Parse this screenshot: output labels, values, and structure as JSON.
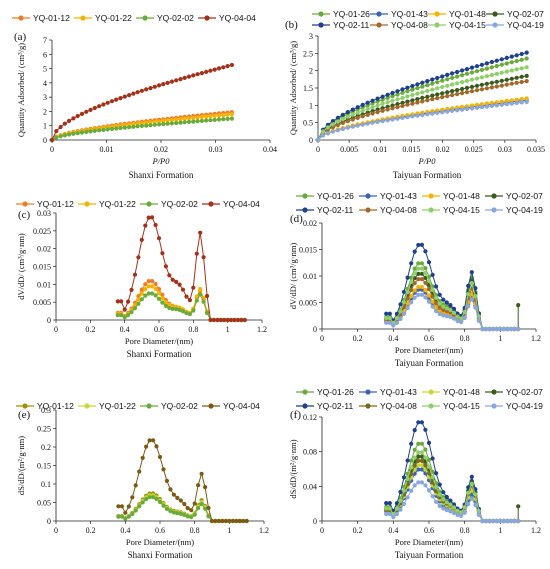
{
  "chart_data": [
    {
      "panel": "(a)",
      "type": "line",
      "formation": "Shanxi Formation",
      "xlabel": "P/P0",
      "ylabel": "Quantity Adsorbed/ (cm³/g)",
      "xlim": [
        0,
        0.04
      ],
      "ylim": [
        0,
        7
      ],
      "xticks": [
        0,
        0.01,
        0.02,
        0.03,
        0.04
      ],
      "xtick_labels": [
        "0",
        "0.01",
        "0.02",
        "0.03",
        "0.04"
      ],
      "yticks": [
        0,
        1,
        2,
        3,
        4,
        5,
        6,
        7
      ],
      "ytick_labels": [
        "0",
        "1",
        "2",
        "3",
        "4",
        "5",
        "6",
        "7"
      ],
      "legend_cols": 4,
      "series": [
        {
          "name": "YQ-01-12",
          "color": "#f07c2b",
          "marker": "circle",
          "final": 1.95
        },
        {
          "name": "YQ-01-22",
          "color": "#f4b400",
          "marker": "circle",
          "final": 1.8
        },
        {
          "name": "YQ-02-02",
          "color": "#6aaa3a",
          "marker": "circle",
          "final": 1.5
        },
        {
          "name": "YQ-04-04",
          "color": "#a2321c",
          "marker": "circle",
          "final": 5.25
        }
      ]
    },
    {
      "panel": "(b)",
      "type": "line",
      "formation": "Taiyuan Formation",
      "xlabel": "P/P0",
      "ylabel": "Quantity Adsorbed/ (cm³/g)",
      "xlim": [
        0,
        0.035
      ],
      "ylim": [
        0,
        3
      ],
      "xticks": [
        0,
        0.005,
        0.01,
        0.015,
        0.02,
        0.025,
        0.03,
        0.035
      ],
      "xtick_labels": [
        "0",
        "0.005",
        "0.01",
        "0.015",
        "0.02",
        "0.025",
        "0.03",
        "0.035"
      ],
      "yticks": [
        0,
        0.5,
        1,
        1.5,
        2,
        2.5,
        3
      ],
      "ytick_labels": [
        "0",
        "0.5",
        "1",
        "1.5",
        "2",
        "2.5",
        "3"
      ],
      "legend_cols": 4,
      "series": [
        {
          "name": "YQ-01-26",
          "color": "#6aaa3a",
          "marker": "circle",
          "final": 2.35
        },
        {
          "name": "YQ-01-43",
          "color": "#3a63b8",
          "marker": "circle",
          "final": 1.15
        },
        {
          "name": "YQ-01-48",
          "color": "#f4b400",
          "marker": "circle",
          "final": 1.2
        },
        {
          "name": "YQ-02-07",
          "color": "#3b5a1e",
          "marker": "circle",
          "final": 1.85
        },
        {
          "name": "YQ-02-11",
          "color": "#1f3f8c",
          "marker": "circle",
          "final": 2.52
        },
        {
          "name": "YQ-04-08",
          "color": "#a0692b",
          "marker": "circle",
          "final": 1.7
        },
        {
          "name": "YQ-04-15",
          "color": "#8fcf6a",
          "marker": "circle",
          "final": 2.1
        },
        {
          "name": "YQ-04-19",
          "color": "#8aa6dc",
          "marker": "circle",
          "final": 1.1
        }
      ]
    },
    {
      "panel": "(c)",
      "type": "line",
      "formation": "Shanxi Formation",
      "xlabel": "Pore Diameter/(nm)",
      "ylabel": "dV/dD/ (cm³/g·nm)",
      "xlim": [
        0,
        1.2
      ],
      "ylim": [
        0,
        0.03
      ],
      "xticks": [
        0,
        0.2,
        0.4,
        0.6,
        0.8,
        1,
        1.2
      ],
      "xtick_labels": [
        "0",
        "0.2",
        "0.4",
        "0.6",
        "0.8",
        "1",
        "1.2"
      ],
      "yticks": [
        0,
        0.005,
        0.01,
        0.015,
        0.02,
        0.025,
        0.03
      ],
      "ytick_labels": [
        "0",
        "0.005",
        "0.01",
        "0.015",
        "0.02",
        "0.025",
        "0.03"
      ],
      "legend_cols": 4,
      "series": [
        {
          "name": "YQ-01-12",
          "color": "#f07c2b",
          "marker": "circle",
          "p1": 0.011,
          "p2": 0.008,
          "tail": false
        },
        {
          "name": "YQ-01-22",
          "color": "#f4b400",
          "marker": "circle",
          "p1": 0.0095,
          "p2": 0.0085,
          "tail": false
        },
        {
          "name": "YQ-02-02",
          "color": "#6aaa3a",
          "marker": "circle",
          "p1": 0.0075,
          "p2": 0.007,
          "tail": false
        },
        {
          "name": "YQ-04-04",
          "color": "#a2321c",
          "marker": "circle",
          "p1": 0.029,
          "p2": 0.024,
          "tail": false
        }
      ]
    },
    {
      "panel": "(d)",
      "type": "line",
      "formation": "Taiyuan Formation",
      "xlabel": "Pore Diameter/(nm)",
      "ylabel": "dV/dD/ (cm³/g·nm)",
      "xlim": [
        0,
        1.2
      ],
      "ylim": [
        0,
        0.02
      ],
      "xticks": [
        0,
        0.2,
        0.4,
        0.6,
        0.8,
        1,
        1.2
      ],
      "xtick_labels": [
        "0",
        "0.2",
        "0.4",
        "0.6",
        "0.8",
        "1",
        "1.2"
      ],
      "yticks": [
        0,
        0.005,
        0.01,
        0.015,
        0.02
      ],
      "ytick_labels": [
        "0",
        "0.005",
        "0.01",
        "0.015",
        "0.02"
      ],
      "legend_cols": 4,
      "series": [
        {
          "name": "YQ-01-26",
          "color": "#6aaa3a",
          "marker": "circle",
          "p1": 0.0125,
          "p2": 0.0095,
          "tail": false
        },
        {
          "name": "YQ-01-43",
          "color": "#3a63b8",
          "marker": "circle",
          "p1": 0.0075,
          "p2": 0.006,
          "tail": false
        },
        {
          "name": "YQ-01-48",
          "color": "#f4b400",
          "marker": "circle",
          "p1": 0.008,
          "p2": 0.0065,
          "tail": false
        },
        {
          "name": "YQ-02-07",
          "color": "#3b5a1e",
          "marker": "circle",
          "p1": 0.0105,
          "p2": 0.009,
          "tail": true,
          "tail_val": 0.0045
        },
        {
          "name": "YQ-02-11",
          "color": "#1f3f8c",
          "marker": "circle",
          "p1": 0.016,
          "p2": 0.0105,
          "tail": false
        },
        {
          "name": "YQ-04-08",
          "color": "#a0692b",
          "marker": "circle",
          "p1": 0.0095,
          "p2": 0.0075,
          "tail": false
        },
        {
          "name": "YQ-04-15",
          "color": "#8fcf6a",
          "marker": "circle",
          "p1": 0.0115,
          "p2": 0.0085,
          "tail": false
        },
        {
          "name": "YQ-04-19",
          "color": "#8aa6dc",
          "marker": "circle",
          "p1": 0.0065,
          "p2": 0.0055,
          "tail": false
        }
      ]
    },
    {
      "panel": "(e)",
      "type": "line",
      "formation": "Shanxi Formation",
      "xlabel": "Pore Diameter/(nm)",
      "ylabel": "dS/dD/(m²/g·nm)",
      "xlim": [
        0,
        1.2
      ],
      "ylim": [
        0,
        0.3
      ],
      "xticks": [
        0,
        0.2,
        0.4,
        0.6,
        0.8,
        1,
        1.2
      ],
      "xtick_labels": [
        "0",
        "0.2",
        "0.4",
        "0.6",
        "0.8",
        "1",
        "1.2"
      ],
      "yticks": [
        0,
        0.05,
        0.1,
        0.15,
        0.2,
        0.25,
        0.3
      ],
      "ytick_labels": [
        "0",
        "0.05",
        "0.1",
        "0.15",
        "0.2",
        "0.25",
        "0.3"
      ],
      "legend_cols": 4,
      "series": [
        {
          "name": "YQ-01-12",
          "color": "#a09200",
          "marker": "circle",
          "p1": 0.075,
          "p2": 0.055,
          "tail": false
        },
        {
          "name": "YQ-01-22",
          "color": "#c8d83a",
          "marker": "circle",
          "p1": 0.07,
          "p2": 0.05,
          "tail": false
        },
        {
          "name": "YQ-02-02",
          "color": "#6aaa3a",
          "marker": "circle",
          "p1": 0.065,
          "p2": 0.045,
          "tail": false
        },
        {
          "name": "YQ-04-04",
          "color": "#7a5a14",
          "marker": "circle",
          "p1": 0.22,
          "p2": 0.125,
          "tail": false
        }
      ]
    },
    {
      "panel": "(f)",
      "type": "line",
      "formation": "Taiyuan Formation",
      "xlabel": "Pore Diameter/(nm)",
      "ylabel": "dS/dD/(m²/g·nm)",
      "xlim": [
        0,
        1.2
      ],
      "ylim": [
        0,
        0.12
      ],
      "xticks": [
        0,
        0.2,
        0.4,
        0.6,
        0.8,
        1,
        1.2
      ],
      "xtick_labels": [
        "0",
        "0.2",
        "0.4",
        "0.6",
        "0.8",
        "1",
        "1.2"
      ],
      "yticks": [
        0,
        0.04,
        0.08,
        0.12
      ],
      "ytick_labels": [
        "0",
        "0.04",
        "0.08",
        "0.12"
      ],
      "legend_cols": 4,
      "series": [
        {
          "name": "YQ-01-26",
          "color": "#6aaa3a",
          "marker": "circle",
          "p1": 0.09,
          "p2": 0.045,
          "tail": false
        },
        {
          "name": "YQ-01-43",
          "color": "#3a63b8",
          "marker": "circle",
          "p1": 0.06,
          "p2": 0.03,
          "tail": false
        },
        {
          "name": "YQ-01-48",
          "color": "#c8d83a",
          "marker": "circle",
          "p1": 0.065,
          "p2": 0.035,
          "tail": false
        },
        {
          "name": "YQ-02-07",
          "color": "#3b5a1e",
          "marker": "circle",
          "p1": 0.075,
          "p2": 0.045,
          "tail": true,
          "tail_val": 0.017
        },
        {
          "name": "YQ-02-11",
          "color": "#1f3f8c",
          "marker": "circle",
          "p1": 0.115,
          "p2": 0.05,
          "tail": false
        },
        {
          "name": "YQ-04-08",
          "color": "#7a6a1c",
          "marker": "circle",
          "p1": 0.07,
          "p2": 0.04,
          "tail": false
        },
        {
          "name": "YQ-04-15",
          "color": "#8fcf6a",
          "marker": "circle",
          "p1": 0.08,
          "p2": 0.042,
          "tail": false
        },
        {
          "name": "YQ-04-19",
          "color": "#8aa6dc",
          "marker": "circle",
          "p1": 0.045,
          "p2": 0.025,
          "tail": false
        }
      ]
    }
  ]
}
